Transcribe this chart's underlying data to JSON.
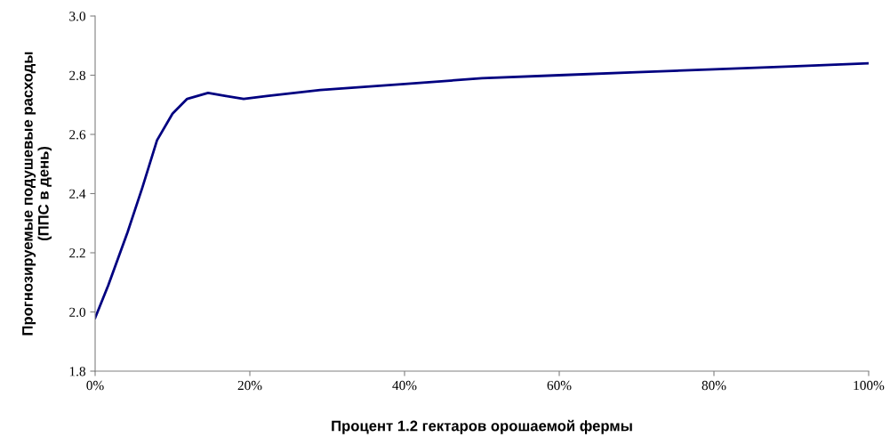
{
  "chart_data": {
    "type": "line",
    "xlabel": "Процент 1.2 гектаров орошаемой фермы",
    "ylabel": "Прогнозируемые подушевые расходы\n(ППС в день)",
    "xlim": [
      0,
      100
    ],
    "xticks": [
      {
        "value": 0,
        "label": "0%"
      },
      {
        "value": 20,
        "label": "20%"
      },
      {
        "value": 40,
        "label": "40%"
      },
      {
        "value": 60,
        "label": "60%"
      },
      {
        "value": 80,
        "label": "80%"
      },
      {
        "value": 100,
        "label": "100%"
      }
    ],
    "ylim": [
      1.8,
      3.0
    ],
    "yticks": [
      {
        "value": 1.8,
        "label": "1.8"
      },
      {
        "value": 2.0,
        "label": "2.0"
      },
      {
        "value": 2.2,
        "label": "2.2"
      },
      {
        "value": 2.4,
        "label": "2.4"
      },
      {
        "value": 2.6,
        "label": "2.6"
      },
      {
        "value": 2.8,
        "label": "2.8"
      },
      {
        "value": 3.0,
        "label": "3.0"
      }
    ],
    "grid": false,
    "legend": false,
    "series": [
      {
        "color": "#000080",
        "x": [
          0,
          1.7,
          4.2,
          6.1,
          8.0,
          10.0,
          11.9,
          14.6,
          16.9,
          19.2,
          22.2,
          29.1,
          40,
          50,
          60,
          70,
          80,
          90,
          100
        ],
        "values": [
          1.98,
          2.09,
          2.27,
          2.42,
          2.58,
          2.67,
          2.72,
          2.74,
          2.73,
          2.72,
          2.73,
          2.75,
          2.77,
          2.79,
          2.8,
          2.81,
          2.82,
          2.83,
          2.84
        ]
      }
    ]
  }
}
